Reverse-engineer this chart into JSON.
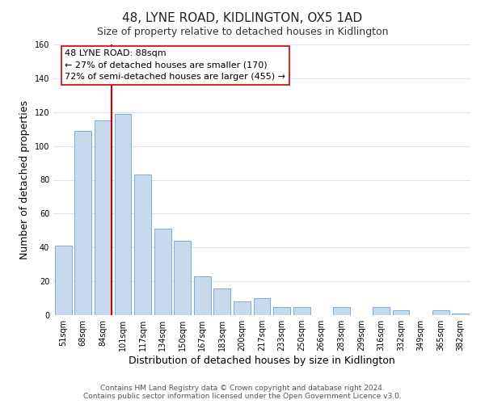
{
  "title": "48, LYNE ROAD, KIDLINGTON, OX5 1AD",
  "subtitle": "Size of property relative to detached houses in Kidlington",
  "xlabel": "Distribution of detached houses by size in Kidlington",
  "ylabel": "Number of detached properties",
  "categories": [
    "51sqm",
    "68sqm",
    "84sqm",
    "101sqm",
    "117sqm",
    "134sqm",
    "150sqm",
    "167sqm",
    "183sqm",
    "200sqm",
    "217sqm",
    "233sqm",
    "250sqm",
    "266sqm",
    "283sqm",
    "299sqm",
    "316sqm",
    "332sqm",
    "349sqm",
    "365sqm",
    "382sqm"
  ],
  "values": [
    41,
    109,
    115,
    119,
    83,
    51,
    44,
    23,
    16,
    8,
    10,
    5,
    5,
    0,
    5,
    0,
    5,
    3,
    0,
    3,
    1
  ],
  "bar_color": "#c8d9ed",
  "bar_edge_color": "#7aadd4",
  "highlight_index": 2,
  "highlight_line_color": "#cc0000",
  "ylim": [
    0,
    160
  ],
  "yticks": [
    0,
    20,
    40,
    60,
    80,
    100,
    120,
    140,
    160
  ],
  "annotation_title": "48 LYNE ROAD: 88sqm",
  "annotation_line1": "← 27% of detached houses are smaller (170)",
  "annotation_line2": "72% of semi-detached houses are larger (455) →",
  "annotation_box_color": "#ffffff",
  "annotation_box_edge": "#cc0000",
  "footer_line1": "Contains HM Land Registry data © Crown copyright and database right 2024.",
  "footer_line2": "Contains public sector information licensed under the Open Government Licence v3.0.",
  "background_color": "#ffffff",
  "grid_color": "#dce6f0",
  "title_fontsize": 11,
  "subtitle_fontsize": 9,
  "axis_label_fontsize": 9,
  "tick_fontsize": 7,
  "annotation_fontsize": 8,
  "footer_fontsize": 6.5
}
